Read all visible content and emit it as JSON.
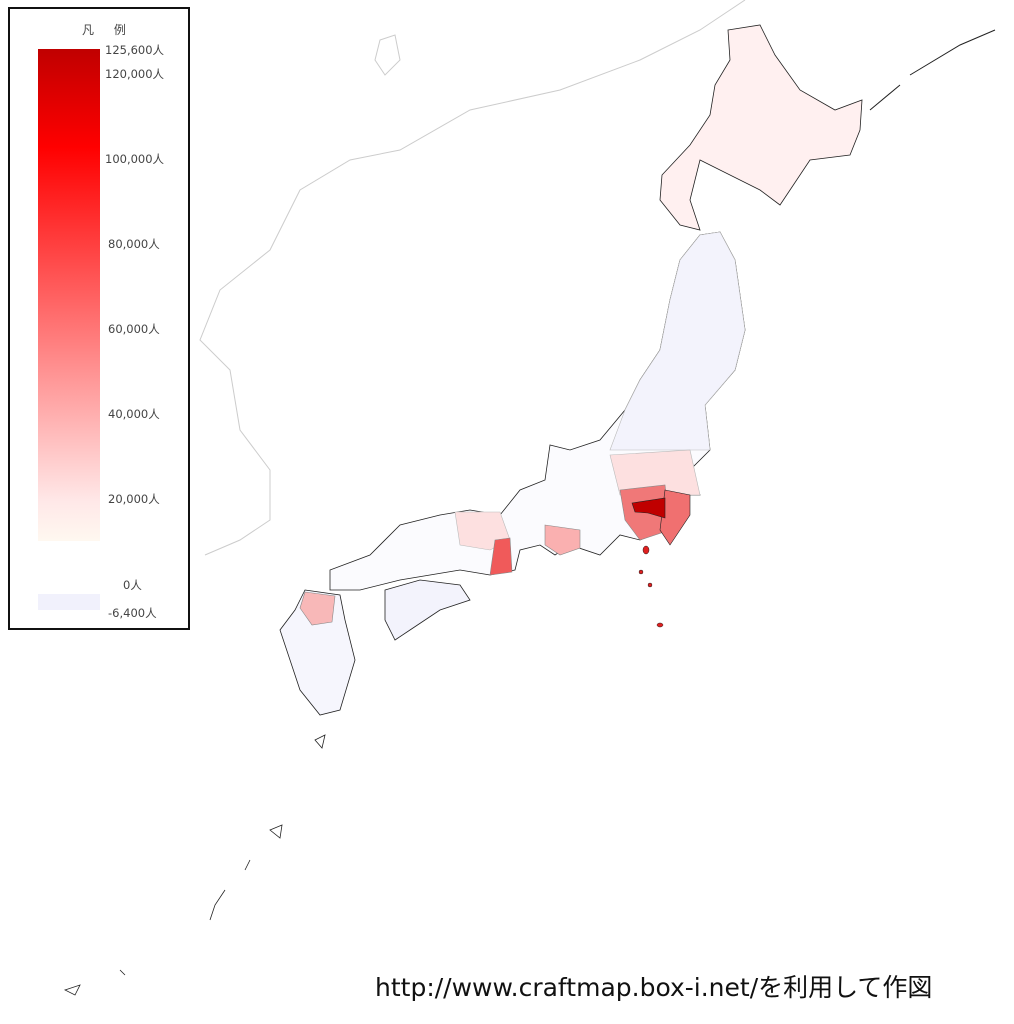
{
  "legend": {
    "title": "凡 例",
    "max_color": "#c00000",
    "mid_color": "#ff0000",
    "min_color": "#fff8f0",
    "negative_color": "#f1f1fc",
    "ticks": [
      {
        "label": "125,600人",
        "value": 125600
      },
      {
        "label": "120,000人",
        "value": 120000
      },
      {
        "label": "100,000人",
        "value": 100000
      },
      {
        "label": "80,000人",
        "value": 80000
      },
      {
        "label": "60,000人",
        "value": 60000
      },
      {
        "label": "40,000人",
        "value": 40000
      },
      {
        "label": "20,000人",
        "value": 20000
      },
      {
        "label": "0人",
        "value": 0
      },
      {
        "label": "-6,400人",
        "value": -6400
      }
    ]
  },
  "regions": [
    {
      "name": "tokyo",
      "color": "#c00000"
    },
    {
      "name": "saitama-kanagawa",
      "color": "#f07878"
    },
    {
      "name": "chiba",
      "color": "#f07070"
    },
    {
      "name": "osaka",
      "color": "#f05a5a"
    },
    {
      "name": "aichi",
      "color": "#fab0b0"
    },
    {
      "name": "fukuoka",
      "color": "#f8b8b8"
    },
    {
      "name": "hokkaido",
      "color": "#fff0f0"
    },
    {
      "name": "tohoku",
      "color": "#f3f3fc"
    }
  ],
  "credit": "http://www.craftmap.box-i.net/を利用して作図"
}
